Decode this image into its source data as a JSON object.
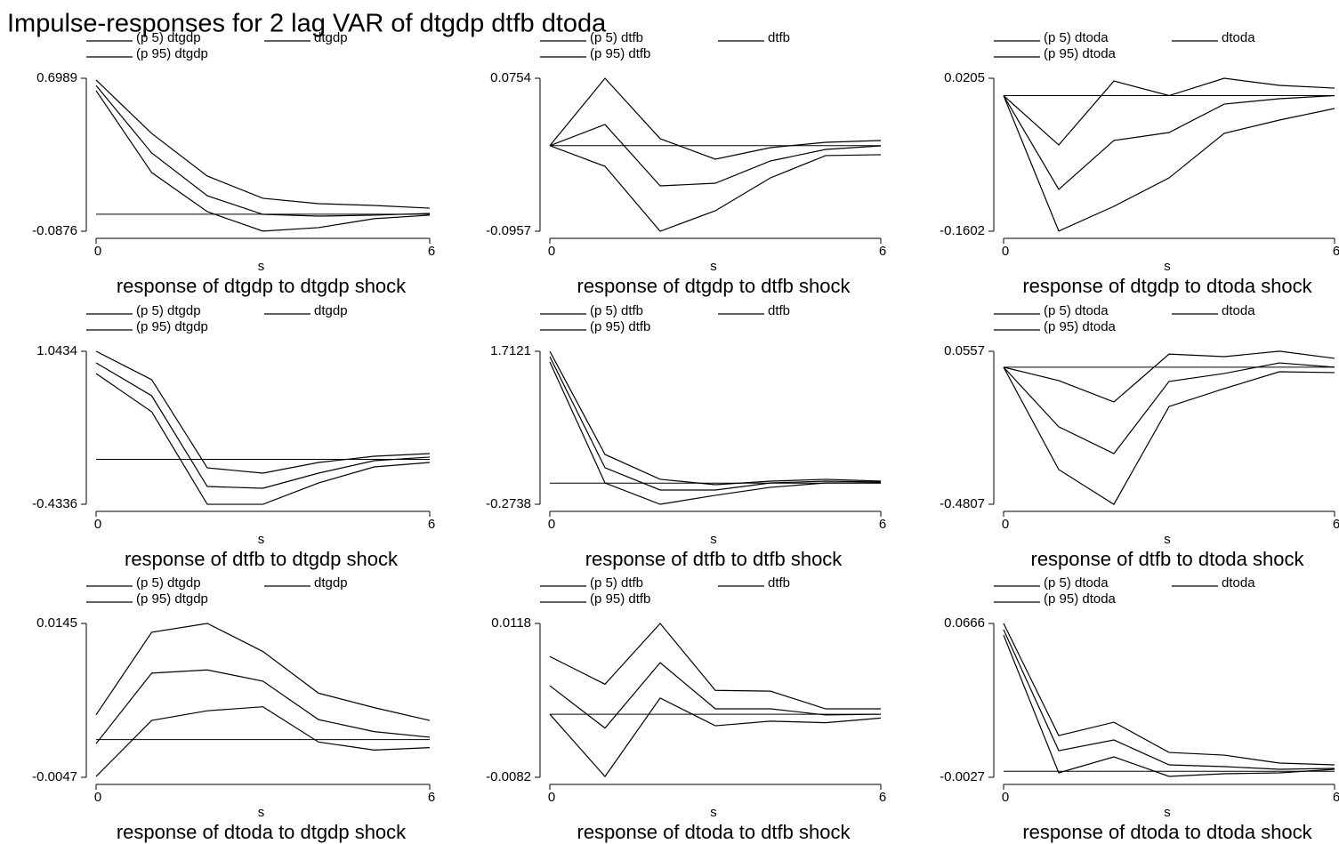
{
  "title": "Impulse-responses for 2 lag VAR of dtgdp dtfb dtoda",
  "chart_data": [
    {
      "type": "line",
      "title": "response of dtgdp to dtgdp shock",
      "x_label": "s",
      "x": [
        0,
        1,
        2,
        3,
        4,
        5,
        6
      ],
      "xlim": [
        0,
        6
      ],
      "xticks": [
        0,
        6
      ],
      "ylim": [
        -0.0876,
        0.6989
      ],
      "yticks": [
        -0.0876,
        0.6989
      ],
      "reference_line": 0,
      "series": [
        {
          "name": "(p 5) dtgdp",
          "color": "#000000",
          "values": [
            0.635,
            0.214,
            0.013,
            -0.087,
            -0.069,
            -0.023,
            -0.005
          ]
        },
        {
          "name": "dtgdp",
          "color": "#000000",
          "values": [
            0.662,
            0.315,
            0.095,
            -0.001,
            -0.01,
            -0.005,
            0.004
          ]
        },
        {
          "name": "(p 95) dtgdp",
          "color": "#000000",
          "values": [
            0.69,
            0.415,
            0.196,
            0.082,
            0.054,
            0.045,
            0.031
          ]
        }
      ]
    },
    {
      "type": "line",
      "title": "response of dtgdp to dtfb shock",
      "x_label": "s",
      "x": [
        0,
        1,
        2,
        3,
        4,
        5,
        6
      ],
      "xlim": [
        0,
        6
      ],
      "xticks": [
        0,
        6
      ],
      "ylim": [
        -0.0957,
        0.0754
      ],
      "yticks": [
        -0.0957,
        0.0754
      ],
      "reference_line": 0,
      "series": [
        {
          "name": "(p 5) dtfb",
          "color": "#000000",
          "values": [
            0,
            -0.0231,
            -0.0957,
            -0.0728,
            -0.036,
            -0.0111,
            -0.0101
          ]
        },
        {
          "name": "dtfb",
          "color": "#000000",
          "values": [
            0,
            0.0237,
            -0.045,
            -0.042,
            -0.0171,
            -0.0042,
            -0.0002
          ]
        },
        {
          "name": "(p 95) dtfb",
          "color": "#000000",
          "values": [
            0,
            0.0754,
            0.0078,
            -0.0151,
            -0.0022,
            0.0038,
            0.0058
          ]
        }
      ]
    },
    {
      "type": "line",
      "title": "response of dtgdp to dtoda shock",
      "x_label": "s",
      "x": [
        0,
        1,
        2,
        3,
        4,
        5,
        6
      ],
      "xlim": [
        0,
        6
      ],
      "xticks": [
        0,
        6
      ],
      "ylim": [
        -0.1602,
        0.0205
      ],
      "yticks": [
        -0.1602,
        0.0205
      ],
      "reference_line": 0,
      "series": [
        {
          "name": "(p 5) dtoda",
          "color": "#000000",
          "values": [
            0,
            -0.16,
            -0.1308,
            -0.0972,
            -0.0446,
            -0.0289,
            -0.0152
          ]
        },
        {
          "name": "dtoda",
          "color": "#000000",
          "values": [
            0,
            -0.1108,
            -0.053,
            -0.0436,
            -0.01,
            -0.0037,
            0
          ]
        },
        {
          "name": "(p 95) dtoda",
          "color": "#000000",
          "values": [
            0,
            -0.0583,
            0.0173,
            0,
            0.0205,
            0.0121,
            0.0089
          ]
        }
      ]
    },
    {
      "type": "line",
      "title": "response of dtfb to dtgdp shock",
      "x_label": "s",
      "x": [
        0,
        1,
        2,
        3,
        4,
        5,
        6
      ],
      "xlim": [
        0,
        6
      ],
      "xticks": [
        0,
        6
      ],
      "ylim": [
        -0.4336,
        1.0434
      ],
      "yticks": [
        -0.4336,
        1.0434
      ],
      "reference_line": 0,
      "series": [
        {
          "name": "(p 5) dtgdp",
          "color": "#000000",
          "values": [
            0.829,
            0.459,
            -0.434,
            -0.434,
            -0.228,
            -0.073,
            -0.03
          ]
        },
        {
          "name": "dtgdp",
          "color": "#000000",
          "values": [
            0.932,
            0.614,
            -0.262,
            -0.279,
            -0.133,
            -0.013,
            0.022
          ]
        },
        {
          "name": "(p 95) dtgdp",
          "color": "#000000",
          "values": [
            1.0434,
            0.769,
            -0.082,
            -0.133,
            -0.03,
            0.03,
            0.056
          ]
        }
      ]
    },
    {
      "type": "line",
      "title": "response of dtfb to dtfb shock",
      "x_label": "s",
      "x": [
        0,
        1,
        2,
        3,
        4,
        5,
        6
      ],
      "xlim": [
        0,
        6
      ],
      "xticks": [
        0,
        6
      ],
      "ylim": [
        -0.2738,
        1.7121
      ],
      "yticks": [
        -0.2738,
        1.7121
      ],
      "reference_line": 0,
      "series": [
        {
          "name": "(p 5) dtfb",
          "color": "#000000",
          "values": [
            1.574,
            0.003,
            -0.274,
            -0.158,
            -0.054,
            0.003,
            0.003
          ]
        },
        {
          "name": "dtfb",
          "color": "#000000",
          "values": [
            1.643,
            0.2,
            -0.089,
            -0.089,
            0.003,
            0.026,
            0.015
          ]
        },
        {
          "name": "(p 95) dtfb",
          "color": "#000000",
          "values": [
            1.712,
            0.373,
            0.05,
            -0.02,
            0.026,
            0.05,
            0.026
          ]
        }
      ]
    },
    {
      "type": "line",
      "title": "response of dtfb to dtoda shock",
      "x_label": "s",
      "x": [
        0,
        1,
        2,
        3,
        4,
        5,
        6
      ],
      "xlim": [
        0,
        6
      ],
      "xticks": [
        0,
        6
      ],
      "ylim": [
        -0.4807,
        0.0557
      ],
      "yticks": [
        -0.4807,
        0.0557
      ],
      "reference_line": 0,
      "series": [
        {
          "name": "(p 5) dtoda",
          "color": "#000000",
          "values": [
            0,
            -0.359,
            -0.481,
            -0.138,
            -0.075,
            -0.016,
            -0.019
          ]
        },
        {
          "name": "dtoda",
          "color": "#000000",
          "values": [
            0,
            -0.209,
            -0.303,
            -0.05,
            -0.022,
            0.015,
            0
          ]
        },
        {
          "name": "(p 95) dtoda",
          "color": "#000000",
          "values": [
            0,
            -0.047,
            -0.122,
            0.046,
            0.037,
            0.056,
            0.031
          ]
        }
      ]
    },
    {
      "type": "line",
      "title": "response of dtoda to dtgdp shock",
      "x_label": "s",
      "x": [
        0,
        1,
        2,
        3,
        4,
        5,
        6
      ],
      "xlim": [
        0,
        6
      ],
      "xticks": [
        0,
        6
      ],
      "ylim": [
        -0.0047,
        0.0145
      ],
      "yticks": [
        -0.0047,
        0.0145
      ],
      "reference_line": 0,
      "series": [
        {
          "name": "(p 5) dtgdp",
          "color": "#000000",
          "values": [
            -0.0046,
            0.0024,
            0.0036,
            0.0041,
            -0.0003,
            -0.0013,
            -0.001
          ]
        },
        {
          "name": "dtgdp",
          "color": "#000000",
          "values": [
            -0.0005,
            0.0083,
            0.0087,
            0.0073,
            0.0025,
            0.001,
            0.0003
          ]
        },
        {
          "name": "(p 95) dtgdp",
          "color": "#000000",
          "values": [
            0.0031,
            0.0134,
            0.0145,
            0.011,
            0.0058,
            0.004,
            0.0024
          ]
        }
      ]
    },
    {
      "type": "line",
      "title": "response of dtoda to dtfb shock",
      "x_label": "s",
      "x": [
        0,
        1,
        2,
        3,
        4,
        5,
        6
      ],
      "xlim": [
        0,
        6
      ],
      "xticks": [
        0,
        6
      ],
      "ylim": [
        -0.0082,
        0.0118
      ],
      "yticks": [
        -0.0082,
        0.0118
      ],
      "reference_line": 0,
      "series": [
        {
          "name": "(p 5) dtfb",
          "color": "#000000",
          "values": [
            0,
            -0.0081,
            0.0021,
            -0.0015,
            -0.0009,
            -0.0011,
            -0.0005
          ]
        },
        {
          "name": "dtfb",
          "color": "#000000",
          "values": [
            0.0037,
            -0.0018,
            0.0067,
            0.0007,
            0.0007,
            -0.0001,
            0
          ]
        },
        {
          "name": "(p 95) dtfb",
          "color": "#000000",
          "values": [
            0.0075,
            0.0039,
            0.0118,
            0.0031,
            0.003,
            0.0007,
            0.0007
          ]
        }
      ]
    },
    {
      "type": "line",
      "title": "response of dtoda to dtoda shock",
      "x_label": "s",
      "x": [
        0,
        1,
        2,
        3,
        4,
        5,
        6
      ],
      "xlim": [
        0,
        6
      ],
      "xticks": [
        0,
        6
      ],
      "ylim": [
        -0.0027,
        0.0666
      ],
      "yticks": [
        -0.0027,
        0.0666
      ],
      "reference_line": 0,
      "series": [
        {
          "name": "(p 5) dtoda",
          "color": "#000000",
          "values": [
            0.0614,
            -0.0007,
            0.0065,
            -0.0023,
            -0.0011,
            -0.0007,
            0.0009
          ]
        },
        {
          "name": "dtoda",
          "color": "#000000",
          "values": [
            0.0638,
            0.0093,
            0.0141,
            0.0029,
            0.0021,
            0.0009,
            0.0013
          ]
        },
        {
          "name": "(p 95) dtoda",
          "color": "#000000",
          "values": [
            0.0666,
            0.0161,
            0.0221,
            0.0085,
            0.0073,
            0.0037,
            0.0029
          ]
        }
      ]
    }
  ]
}
